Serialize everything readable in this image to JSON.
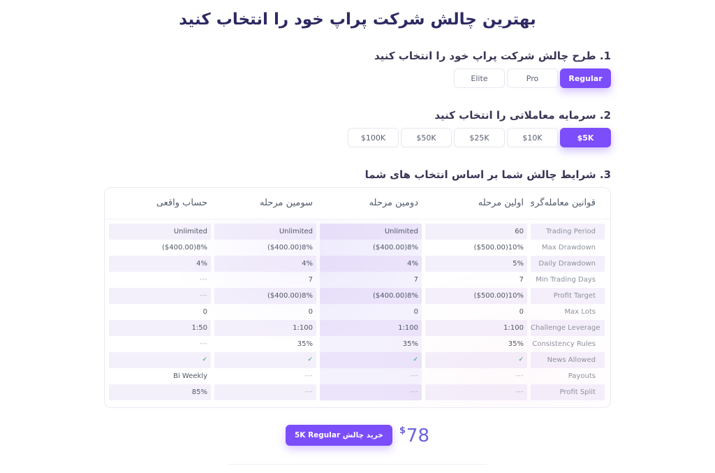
{
  "colors": {
    "accent": "#7c4dfa",
    "title": "#2d2963",
    "price": "#6b62d9",
    "check": "#16a34a"
  },
  "page": {
    "title": "بهترین چالش شرکت پراپ خود را انتخاب کنید"
  },
  "step_plan": {
    "heading": "1. طرح چالش شرکت پراپ خود را انتخاب کنید",
    "options": [
      {
        "label": "Regular",
        "selected": true
      },
      {
        "label": "Pro",
        "selected": false
      },
      {
        "label": "Elite",
        "selected": false
      }
    ]
  },
  "step_capital": {
    "heading": "2. سرمایه معاملاتی را انتخاب کنید",
    "options": [
      {
        "label": "$5K",
        "selected": true
      },
      {
        "label": "$10K",
        "selected": false
      },
      {
        "label": "$25K",
        "selected": false
      },
      {
        "label": "$50K",
        "selected": false
      },
      {
        "label": "$100K",
        "selected": false
      }
    ]
  },
  "step_terms": {
    "heading": "3. شرایط چالش شما بر اساس انتخاب های شما"
  },
  "table": {
    "headers": [
      "قوانین معامله‌گری",
      "اولین مرحله",
      "دومین مرحله",
      "سومین مرحله",
      "حساب واقعی"
    ],
    "rows": [
      {
        "label": "Trading Period",
        "first": "60",
        "second": "Unlimited",
        "third": "Unlimited",
        "real": "Unlimited"
      },
      {
        "label": "Max Drawdown",
        "first": "($500.00)10%",
        "second": "($400.00)8%",
        "third": "($400.00)8%",
        "real": "($400.00)8%"
      },
      {
        "label": "Daily Drawdown",
        "first": "5%",
        "second": "4%",
        "third": "4%",
        "real": "4%"
      },
      {
        "label": "Min Trading Days",
        "first": "7",
        "second": "7",
        "third": "7",
        "real": "---"
      },
      {
        "label": "Profit Target",
        "first": "($500.00)10%",
        "second": "($400.00)8%",
        "third": "($400.00)8%",
        "real": "---"
      },
      {
        "label": "Max Lots",
        "first": "0",
        "second": "0",
        "third": "0",
        "real": "0"
      },
      {
        "label": "Challenge Leverage",
        "first": "1:100",
        "second": "1:100",
        "third": "1:100",
        "real": "1:50"
      },
      {
        "label": "Consistency Rules",
        "first": "35%",
        "second": "35%",
        "third": "35%",
        "real": "---"
      },
      {
        "label": "News Allowed",
        "first": "✓",
        "second": "✓",
        "third": "✓",
        "real": "✓"
      },
      {
        "label": "Payouts",
        "first": "---",
        "second": "---",
        "third": "---",
        "real": "Bi Weekly"
      },
      {
        "label": "Profit Split",
        "first": "---",
        "second": "---",
        "third": "---",
        "real": "85%"
      }
    ]
  },
  "purchase": {
    "button_label": "خرید چالش 5K Regular",
    "currency": "$",
    "amount": "78"
  }
}
